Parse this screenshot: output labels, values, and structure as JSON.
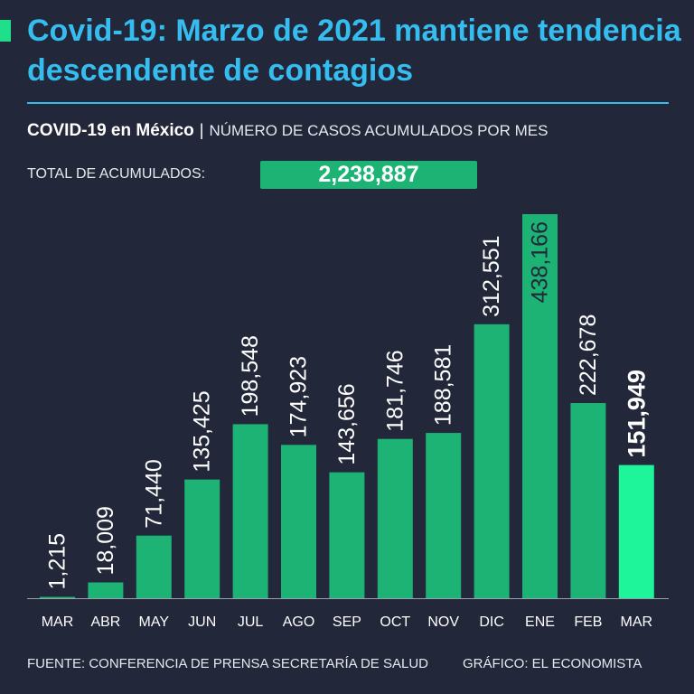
{
  "header": {
    "title": "Covid-19: Marzo de 2021 mantiene tendencia descendente de contagios",
    "subtitle_bold": "COVID-19 en México",
    "subtitle_sep": "|",
    "subtitle_light": "NÚMERO DE CASOS ACUMULADOS POR MES"
  },
  "total": {
    "label": "TOTAL DE ACUMULADOS:",
    "value": "2,238,887"
  },
  "colors": {
    "background": "#22273a",
    "title": "#35bdf0",
    "bar": "#1cb375",
    "highlight_bar": "#1ef59a",
    "ene_label": "#22273a"
  },
  "chart_data": {
    "type": "bar",
    "title": "NÚMERO DE CASOS ACUMULADOS POR MES",
    "xlabel": "",
    "ylabel": "",
    "ylim": [
      0,
      438166
    ],
    "grid": false,
    "categories": [
      "MAR",
      "ABR",
      "MAY",
      "JUN",
      "JUL",
      "AGO",
      "SEP",
      "OCT",
      "NOV",
      "DIC",
      "ENE",
      "FEB",
      "MAR"
    ],
    "values": [
      1215,
      18009,
      71440,
      135425,
      198548,
      174923,
      143656,
      181746,
      188581,
      312551,
      438166,
      222678,
      151949
    ],
    "labels": [
      "1,215",
      "18,009",
      "71,440",
      "135,425",
      "198,548",
      "174,923",
      "143,656",
      "181,746",
      "188,581",
      "312,551",
      "438,166",
      "222,678",
      "151,949"
    ],
    "highlight_index": 12,
    "inside_label_index": 10
  },
  "footer": {
    "source": "FUENTE: CONFERENCIA DE PRENSA SECRETARÍA DE SALUD",
    "credit": "GRÁFICO: EL ECONOMISTA"
  }
}
